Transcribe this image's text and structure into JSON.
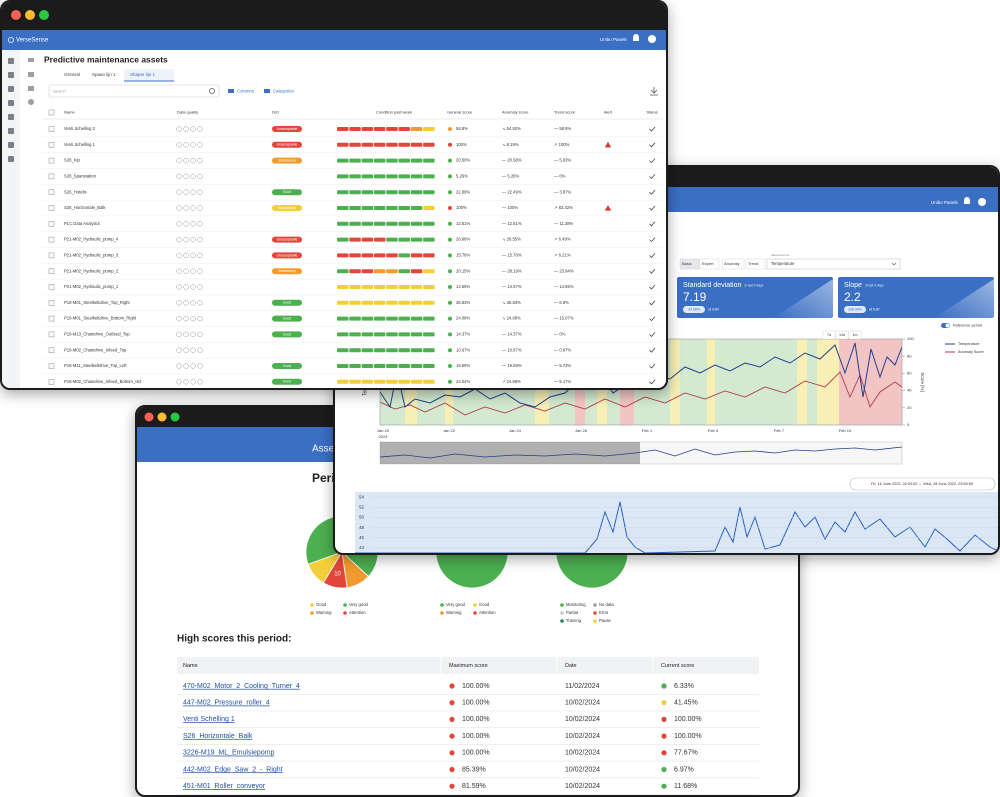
{
  "assets_window": {
    "brand": "VerseSense",
    "user": "Unibo Panels",
    "title": "Predictive maintenance assets",
    "tabs": [
      "General",
      "Spaan lijn 1",
      "Shaper lijn 1"
    ],
    "search": "Search",
    "columns_button": "Columns",
    "categories_button": "Categories",
    "headers": [
      "Name",
      "Data quality",
      "ISO",
      "Condition past week",
      "General score",
      "Anomaly score",
      "Trend score",
      "Alert",
      "Status"
    ],
    "condition_colors": {
      "r": "#e2463a",
      "o": "#f29a2e",
      "y": "#f2cf3a",
      "g": "#4caf50"
    },
    "rows": [
      {
        "name": "Venti Schelling 2",
        "iso": "Unacceptable",
        "iso_color": "#e2463a",
        "condition": "rrrrrroy",
        "score": "58.8%",
        "score_color": "#f29a2e",
        "anomaly": "↘ 54.92%",
        "trend": "— 58.6%",
        "alert": false
      },
      {
        "name": "Venti Schelling 1",
        "iso": "Unacceptable",
        "iso_color": "#e2463a",
        "condition": "rrrrrrrr",
        "score": "100%",
        "score_color": "#e2463a",
        "anomaly": "↘ 8.19%",
        "trend": "↗ 100%",
        "alert": true
      },
      {
        "name": "S28_Kip",
        "iso": "Satisfactory",
        "iso_color": "#f29a2e",
        "condition": "gggggggg",
        "score": "20.50%",
        "score_color": "#4caf50",
        "anomaly": "— 20.58%",
        "trend": "— 5.03%",
        "alert": false
      },
      {
        "name": "S28_Spanstation",
        "iso": null,
        "iso_color": null,
        "condition": "gggggggg",
        "score": "5.26%",
        "score_color": "#4caf50",
        "anomaly": "— 5.26%",
        "trend": "— 0%",
        "alert": false
      },
      {
        "name": "S26_Hotelis",
        "iso": "Good",
        "iso_color": "#4caf50",
        "condition": "gggggggg",
        "score": "22.89%",
        "score_color": "#4caf50",
        "anomaly": "— 22.49%",
        "trend": "— 3.87%",
        "alert": false
      },
      {
        "name": "S26_Horizontale_Balk",
        "iso": "Satisfactory",
        "iso_color": "#f2cf3a",
        "condition": "gggggggy",
        "score": "100%",
        "score_color": "#e2463a",
        "anomaly": "— 100%",
        "trend": "↗ 83.42%",
        "alert": true
      },
      {
        "name": "PLC Data Analytics",
        "iso": null,
        "iso_color": null,
        "condition": "gggggggg",
        "score": "12.61%",
        "score_color": "#4caf50",
        "anomaly": "— 12.61%",
        "trend": "— 11.38%",
        "alert": false
      },
      {
        "name": "P21-M02_Hydraulic_pump_4",
        "iso": "Unacceptable",
        "iso_color": "#e2463a",
        "condition": "grrrgggg",
        "score": "26.66%",
        "score_color": "#4caf50",
        "anomaly": "↘ 26.55%",
        "trend": "↗ 6.49%",
        "alert": false
      },
      {
        "name": "P21-M02_Hydraulic_pump_3",
        "iso": "Unacceptable",
        "iso_color": "#e2463a",
        "condition": "rrrrrgrr",
        "score": "15.76%",
        "score_color": "#4caf50",
        "anomaly": "— 15.76%",
        "trend": "↗ 6.21%",
        "alert": false
      },
      {
        "name": "P21-M02_Hydraulic_pump_2",
        "iso": "Satisfactory",
        "iso_color": "#f29a2e",
        "condition": "grroogry",
        "score": "28.15%",
        "score_color": "#4caf50",
        "anomaly": "— 28.19%",
        "trend": "— 23.94%",
        "alert": false
      },
      {
        "name": "P21-M02_Hydraulic_pump_1",
        "iso": null,
        "iso_color": null,
        "condition": "yyyyyyyy",
        "score": "14.65%",
        "score_color": "#4caf50",
        "anomaly": "— 14.67%",
        "trend": "— 14.65%",
        "alert": false
      },
      {
        "name": "P18-M01_Steelkeltdrive_Top_Right",
        "iso": "Good",
        "iso_color": "#4caf50",
        "condition": "yyyyyyyy",
        "score": "35.83%",
        "score_color": "#4caf50",
        "anomaly": "↘ 35.83%",
        "trend": "— 6.8%",
        "alert": false
      },
      {
        "name": "P18-M01_Steelkeltdrive_Bottom_Right",
        "iso": "Good",
        "iso_color": "#4caf50",
        "condition": "gggggggg",
        "score": "24.08%",
        "score_color": "#4caf50",
        "anomaly": "↘ 24.08%",
        "trend": "— 15.07%",
        "alert": false
      },
      {
        "name": "P18-M13_Chaindrive_Outfeed_Top",
        "iso": "Good",
        "iso_color": "#4caf50",
        "condition": "gggggggg",
        "score": "14.37%",
        "score_color": "#4caf50",
        "anomaly": "— 14.37%",
        "trend": "— 0%",
        "alert": false
      },
      {
        "name": "P18-M02_Chaindrive_Infeed_Top",
        "iso": null,
        "iso_color": null,
        "condition": "gggggggg",
        "score": "10.67%",
        "score_color": "#4caf50",
        "anomaly": "— 10.67%",
        "trend": "— 0.67%",
        "alert": false
      },
      {
        "name": "P18-M11_Steelkeltdrive_Top_Left",
        "iso": "Good",
        "iso_color": "#4caf50",
        "condition": "gggggggg",
        "score": "19.69%",
        "score_color": "#4caf50",
        "anomaly": "— 19.59%",
        "trend": "— 5.73%",
        "alert": false
      },
      {
        "name": "P18-M02_Chaindrive_Infeed_Bottom_old",
        "iso": "Good",
        "iso_color": "#4caf50",
        "condition": "yyyyyyyy",
        "score": "24.04%",
        "score_color": "#4caf50",
        "anomaly": "↗ 24.69%",
        "trend": "— 5.17%",
        "alert": false
      }
    ]
  },
  "detail_window": {
    "user": "Unibo Panels",
    "tabs": [
      "Basic",
      "Expert",
      "Anomaly",
      "Trend"
    ],
    "select_label": "Measurement",
    "select": "Temperature",
    "cards": [
      {
        "title": "Standard deviation",
        "subtitle": "of last 4 days",
        "value": 7.19,
        "delta": "34.58%",
        "note": "of 3.84"
      },
      {
        "title": "Slope",
        "subtitle": "of last 4 days",
        "value": 2.2,
        "delta": "236.40%",
        "note": "of 0.87"
      }
    ],
    "ranges": [
      "7d",
      "14d",
      "1m"
    ],
    "reference": "Reference period",
    "legend": [
      {
        "name": "Temperature",
        "color": "#1f3f8f"
      },
      {
        "name": "Anomaly Score",
        "color": "#b03a4a"
      }
    ],
    "y_label": "Temperature",
    "y2_label": "Score [%]",
    "y2lim": [
      0,
      100
    ],
    "y2ticks": [
      0,
      20,
      40,
      60,
      80,
      100
    ],
    "x_labels": [
      "Jan 20",
      "Jan 22",
      "Jan 24",
      "Jan 26",
      "Feb 1",
      "Feb 4",
      "Feb 7",
      "Feb 10"
    ],
    "x_year": "2024",
    "date_range": "Fri, 16 June 2022, 02:00:00 → Wed, 28 June 2022, 03:59:59",
    "lower_ylim": [
      43,
      55
    ],
    "lower_yticks": [
      44,
      46,
      48,
      50,
      52,
      54
    ]
  },
  "report_window": {
    "header": "Asset overview",
    "period_title": "Period overview",
    "pies": [
      {
        "slices": [
          {
            "name": "Good",
            "color": "#f2cf3a",
            "value": 10
          },
          {
            "name": "Very good",
            "color": "#4caf50",
            "value": 62
          },
          {
            "name": "Warning",
            "color": "#f29a2e",
            "value": 10
          },
          {
            "name": "Attention",
            "color": "#e2463a",
            "value": 10,
            "show_label": true
          }
        ]
      },
      {
        "slices": [
          {
            "name": "Very good",
            "color": "#4caf50",
            "value": 45
          },
          {
            "name": "Good",
            "color": "#f2cf3a",
            "value": 1
          },
          {
            "name": "Warning",
            "color": "#f29a2e",
            "value": 0
          },
          {
            "name": "Attention",
            "color": "#e2463a",
            "value": 0
          }
        ]
      },
      {
        "slices": [
          {
            "name": "Monitoring",
            "color": "#4caf50",
            "value": 40
          },
          {
            "name": "No data",
            "color": "#9e9e9e",
            "value": 0
          },
          {
            "name": "Partial",
            "color": "#c8c8c8",
            "value": 0
          },
          {
            "name": "Error",
            "color": "#e2463a",
            "value": 0
          },
          {
            "name": "Training",
            "color": "#2e7d6b",
            "value": 0
          },
          {
            "name": "Pause",
            "color": "#f2cf3a",
            "value": 1
          }
        ]
      }
    ],
    "high_scores_title": "High scores this period:",
    "table_headers": [
      "Name",
      "Maximum score",
      "Date",
      "Current score"
    ],
    "rows": [
      {
        "name": "470-M02_Motor_2_Cooling_Turner_4",
        "max_score": "100.00%",
        "max_color": "#e2463a",
        "date": "11/02/2024",
        "current": "6.33%",
        "current_color": "#4caf50"
      },
      {
        "name": "447-M02_Pressure_roller_4",
        "max_score": "100.00%",
        "max_color": "#e2463a",
        "date": "10/02/2024",
        "current": "41.45%",
        "current_color": "#f2cf3a"
      },
      {
        "name": "Venti Schelling 1",
        "max_score": "100.00%",
        "max_color": "#e2463a",
        "date": "10/02/2024",
        "current": "100.00%",
        "current_color": "#e2463a"
      },
      {
        "name": "S26_Horizontale_Balk",
        "max_score": "100.00%",
        "max_color": "#e2463a",
        "date": "10/02/2024",
        "current": "100.00%",
        "current_color": "#e2463a"
      },
      {
        "name": "3226-M19_ML_Emulsiepomp",
        "max_score": "100.00%",
        "max_color": "#e2463a",
        "date": "10/02/2024",
        "current": "77.67%",
        "current_color": "#e2463a"
      },
      {
        "name": "442-M02_Edge_Saw_2_-_Right",
        "max_score": "85.39%",
        "max_color": "#e2463a",
        "date": "10/02/2024",
        "current": "6.97%",
        "current_color": "#4caf50"
      },
      {
        "name": "451-M01_Roller_conveyor",
        "max_score": "81.59%",
        "max_color": "#e2463a",
        "date": "10/02/2024",
        "current": "11.68%",
        "current_color": "#4caf50"
      }
    ]
  }
}
